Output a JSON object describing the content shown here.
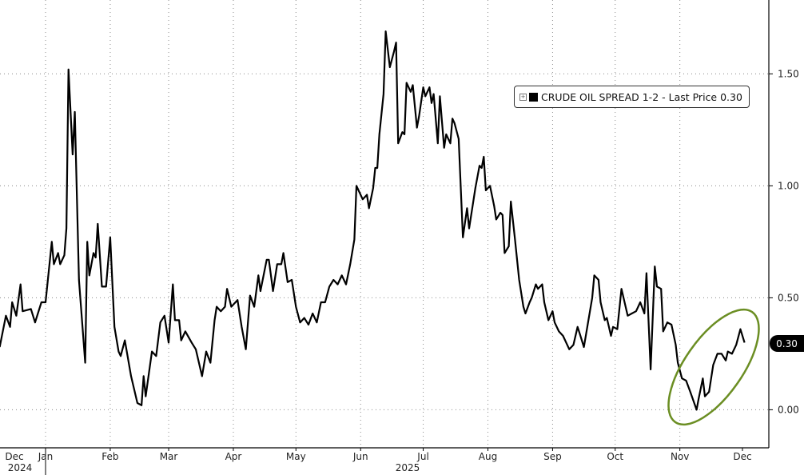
{
  "chart_data": {
    "type": "line",
    "title": "",
    "xlabel": "",
    "ylabel": "",
    "ylim": [
      -0.17,
      1.83
    ],
    "y_axis_side": "right",
    "grid": true,
    "grid_style": "dotted",
    "legend_placement": "top-right",
    "y_ticks": [
      "0.00",
      "0.50",
      "1.00",
      "1.50"
    ],
    "y_tick_values": [
      0,
      0.5,
      1.0,
      1.5
    ],
    "x_ticks": [
      {
        "label": "Dec",
        "date": "2024-12-01"
      },
      {
        "label": "Jan",
        "date": "2025-01-01"
      },
      {
        "label": "Feb",
        "date": "2025-02-01"
      },
      {
        "label": "Mar",
        "date": "2025-03-01"
      },
      {
        "label": "Apr",
        "date": "2025-04-01"
      },
      {
        "label": "May",
        "date": "2025-05-01"
      },
      {
        "label": "Jun",
        "date": "2025-06-01"
      },
      {
        "label": "Jul",
        "date": "2025-07-01"
      },
      {
        "label": "Aug",
        "date": "2025-08-01"
      },
      {
        "label": "Sep",
        "date": "2025-09-01"
      },
      {
        "label": "Oct",
        "date": "2025-10-01"
      },
      {
        "label": "Nov",
        "date": "2025-11-01"
      },
      {
        "label": "Dec",
        "date": "2025-12-01"
      }
    ],
    "year_labels": [
      {
        "label": "2024"
      },
      {
        "label": "2025"
      }
    ],
    "series": [
      {
        "name": "CRUDE OIL SPREAD 1-2 - Last Price 0.30",
        "color": "#000000",
        "points": [
          [
            "2024-12-10",
            0.28
          ],
          [
            "2024-12-13",
            0.42
          ],
          [
            "2024-12-15",
            0.37
          ],
          [
            "2024-12-16",
            0.48
          ],
          [
            "2024-12-18",
            0.42
          ],
          [
            "2024-12-20",
            0.56
          ],
          [
            "2024-12-21",
            0.44
          ],
          [
            "2024-12-25",
            0.45
          ],
          [
            "2024-12-27",
            0.39
          ],
          [
            "2024-12-30",
            0.48
          ],
          [
            "2025-01-01",
            0.48
          ],
          [
            "2025-01-04",
            0.75
          ],
          [
            "2025-01-05",
            0.65
          ],
          [
            "2025-01-07",
            0.7
          ],
          [
            "2025-01-08",
            0.65
          ],
          [
            "2025-01-10",
            0.69
          ],
          [
            "2025-01-11",
            0.81
          ],
          [
            "2025-01-12",
            1.52
          ],
          [
            "2025-01-14",
            1.14
          ],
          [
            "2025-01-15",
            1.33
          ],
          [
            "2025-01-17",
            0.58
          ],
          [
            "2025-01-20",
            0.21
          ],
          [
            "2025-01-21",
            0.75
          ],
          [
            "2025-01-22",
            0.6
          ],
          [
            "2025-01-24",
            0.7
          ],
          [
            "2025-01-25",
            0.68
          ],
          [
            "2025-01-26",
            0.83
          ],
          [
            "2025-01-28",
            0.55
          ],
          [
            "2025-01-30",
            0.55
          ],
          [
            "2025-02-01",
            0.77
          ],
          [
            "2025-02-03",
            0.37
          ],
          [
            "2025-02-05",
            0.26
          ],
          [
            "2025-02-06",
            0.24
          ],
          [
            "2025-02-08",
            0.31
          ],
          [
            "2025-02-11",
            0.15
          ],
          [
            "2025-02-14",
            0.03
          ],
          [
            "2025-02-16",
            0.02
          ],
          [
            "2025-02-17",
            0.15
          ],
          [
            "2025-02-18",
            0.06
          ],
          [
            "2025-02-21",
            0.26
          ],
          [
            "2025-02-23",
            0.24
          ],
          [
            "2025-02-25",
            0.39
          ],
          [
            "2025-02-27",
            0.42
          ],
          [
            "2025-03-01",
            0.3
          ],
          [
            "2025-03-03",
            0.56
          ],
          [
            "2025-03-04",
            0.4
          ],
          [
            "2025-03-06",
            0.4
          ],
          [
            "2025-03-07",
            0.31
          ],
          [
            "2025-03-09",
            0.35
          ],
          [
            "2025-03-12",
            0.3
          ],
          [
            "2025-03-14",
            0.27
          ],
          [
            "2025-03-17",
            0.15
          ],
          [
            "2025-03-19",
            0.26
          ],
          [
            "2025-03-21",
            0.21
          ],
          [
            "2025-03-23",
            0.4
          ],
          [
            "2025-03-24",
            0.46
          ],
          [
            "2025-03-26",
            0.44
          ],
          [
            "2025-03-28",
            0.46
          ],
          [
            "2025-03-29",
            0.54
          ],
          [
            "2025-03-31",
            0.46
          ],
          [
            "2025-04-03",
            0.49
          ],
          [
            "2025-04-05",
            0.37
          ],
          [
            "2025-04-07",
            0.27
          ],
          [
            "2025-04-09",
            0.51
          ],
          [
            "2025-04-11",
            0.46
          ],
          [
            "2025-04-13",
            0.6
          ],
          [
            "2025-04-14",
            0.53
          ],
          [
            "2025-04-17",
            0.67
          ],
          [
            "2025-04-18",
            0.67
          ],
          [
            "2025-04-20",
            0.53
          ],
          [
            "2025-04-22",
            0.65
          ],
          [
            "2025-04-24",
            0.65
          ],
          [
            "2025-04-25",
            0.7
          ],
          [
            "2025-04-27",
            0.57
          ],
          [
            "2025-04-29",
            0.58
          ],
          [
            "2025-05-01",
            0.46
          ],
          [
            "2025-05-03",
            0.39
          ],
          [
            "2025-05-05",
            0.41
          ],
          [
            "2025-05-07",
            0.38
          ],
          [
            "2025-05-09",
            0.43
          ],
          [
            "2025-05-11",
            0.39
          ],
          [
            "2025-05-13",
            0.48
          ],
          [
            "2025-05-15",
            0.48
          ],
          [
            "2025-05-17",
            0.55
          ],
          [
            "2025-05-19",
            0.58
          ],
          [
            "2025-05-21",
            0.56
          ],
          [
            "2025-05-23",
            0.6
          ],
          [
            "2025-05-25",
            0.56
          ],
          [
            "2025-05-27",
            0.65
          ],
          [
            "2025-05-29",
            0.76
          ],
          [
            "2025-05-30",
            1.0
          ],
          [
            "2025-06-02",
            0.94
          ],
          [
            "2025-06-04",
            0.96
          ],
          [
            "2025-06-05",
            0.9
          ],
          [
            "2025-06-07",
            0.99
          ],
          [
            "2025-06-08",
            1.08
          ],
          [
            "2025-06-09",
            1.08
          ],
          [
            "2025-06-10",
            1.23
          ],
          [
            "2025-06-12",
            1.41
          ],
          [
            "2025-06-13",
            1.69
          ],
          [
            "2025-06-15",
            1.53
          ],
          [
            "2025-06-17",
            1.6
          ],
          [
            "2025-06-18",
            1.64
          ],
          [
            "2025-06-19",
            1.19
          ],
          [
            "2025-06-21",
            1.24
          ],
          [
            "2025-06-22",
            1.23
          ],
          [
            "2025-06-23",
            1.46
          ],
          [
            "2025-06-25",
            1.42
          ],
          [
            "2025-06-26",
            1.45
          ],
          [
            "2025-06-28",
            1.26
          ],
          [
            "2025-06-29",
            1.31
          ],
          [
            "2025-07-01",
            1.44
          ],
          [
            "2025-07-02",
            1.4
          ],
          [
            "2025-07-04",
            1.44
          ],
          [
            "2025-07-05",
            1.37
          ],
          [
            "2025-07-06",
            1.41
          ],
          [
            "2025-07-08",
            1.19
          ],
          [
            "2025-07-09",
            1.4
          ],
          [
            "2025-07-11",
            1.17
          ],
          [
            "2025-07-12",
            1.23
          ],
          [
            "2025-07-14",
            1.19
          ],
          [
            "2025-07-15",
            1.3
          ],
          [
            "2025-07-16",
            1.28
          ],
          [
            "2025-07-18",
            1.21
          ],
          [
            "2025-07-20",
            0.77
          ],
          [
            "2025-07-22",
            0.9
          ],
          [
            "2025-07-23",
            0.81
          ],
          [
            "2025-07-26",
            0.99
          ],
          [
            "2025-07-28",
            1.09
          ],
          [
            "2025-07-29",
            1.08
          ],
          [
            "2025-07-30",
            1.13
          ],
          [
            "2025-07-31",
            0.98
          ],
          [
            "2025-08-02",
            1.0
          ],
          [
            "2025-08-04",
            0.91
          ],
          [
            "2025-08-05",
            0.85
          ],
          [
            "2025-08-07",
            0.88
          ],
          [
            "2025-08-08",
            0.87
          ],
          [
            "2025-08-09",
            0.7
          ],
          [
            "2025-08-11",
            0.73
          ],
          [
            "2025-08-12",
            0.93
          ],
          [
            "2025-08-14",
            0.76
          ],
          [
            "2025-08-16",
            0.58
          ],
          [
            "2025-08-18",
            0.46
          ],
          [
            "2025-08-19",
            0.43
          ],
          [
            "2025-08-21",
            0.48
          ],
          [
            "2025-08-22",
            0.5
          ],
          [
            "2025-08-24",
            0.56
          ],
          [
            "2025-08-25",
            0.54
          ],
          [
            "2025-08-27",
            0.56
          ],
          [
            "2025-08-28",
            0.48
          ],
          [
            "2025-08-30",
            0.4
          ],
          [
            "2025-09-01",
            0.44
          ],
          [
            "2025-09-02",
            0.39
          ],
          [
            "2025-09-04",
            0.35
          ],
          [
            "2025-09-06",
            0.33
          ],
          [
            "2025-09-08",
            0.29
          ],
          [
            "2025-09-09",
            0.27
          ],
          [
            "2025-09-11",
            0.29
          ],
          [
            "2025-09-13",
            0.37
          ],
          [
            "2025-09-14",
            0.34
          ],
          [
            "2025-09-16",
            0.28
          ],
          [
            "2025-09-18",
            0.39
          ],
          [
            "2025-09-20",
            0.5
          ],
          [
            "2025-09-21",
            0.6
          ],
          [
            "2025-09-23",
            0.58
          ],
          [
            "2025-09-24",
            0.48
          ],
          [
            "2025-09-26",
            0.4
          ],
          [
            "2025-09-27",
            0.41
          ],
          [
            "2025-09-29",
            0.33
          ],
          [
            "2025-09-30",
            0.37
          ],
          [
            "2025-10-02",
            0.36
          ],
          [
            "2025-10-04",
            0.54
          ],
          [
            "2025-10-05",
            0.5
          ],
          [
            "2025-10-07",
            0.42
          ],
          [
            "2025-10-09",
            0.43
          ],
          [
            "2025-10-11",
            0.44
          ],
          [
            "2025-10-13",
            0.48
          ],
          [
            "2025-10-15",
            0.43
          ],
          [
            "2025-10-16",
            0.61
          ],
          [
            "2025-10-18",
            0.18
          ],
          [
            "2025-10-20",
            0.64
          ],
          [
            "2025-10-21",
            0.55
          ],
          [
            "2025-10-23",
            0.54
          ],
          [
            "2025-10-24",
            0.35
          ],
          [
            "2025-10-26",
            0.39
          ],
          [
            "2025-10-28",
            0.38
          ],
          [
            "2025-10-30",
            0.29
          ],
          [
            "2025-10-31",
            0.21
          ],
          [
            "2025-11-02",
            0.14
          ],
          [
            "2025-11-04",
            0.13
          ],
          [
            "2025-11-06",
            0.08
          ],
          [
            "2025-11-09",
            0.0
          ],
          [
            "2025-11-10",
            0.05
          ],
          [
            "2025-11-12",
            0.14
          ],
          [
            "2025-11-13",
            0.06
          ],
          [
            "2025-11-15",
            0.08
          ],
          [
            "2025-11-17",
            0.2
          ],
          [
            "2025-11-19",
            0.25
          ],
          [
            "2025-11-21",
            0.25
          ],
          [
            "2025-11-23",
            0.22
          ],
          [
            "2025-11-24",
            0.26
          ],
          [
            "2025-11-26",
            0.25
          ],
          [
            "2025-11-28",
            0.29
          ],
          [
            "2025-11-30",
            0.36
          ],
          [
            "2025-12-02",
            0.3
          ]
        ]
      }
    ],
    "annotations": [
      {
        "type": "ellipse",
        "color": "#6b8e23",
        "around": "November 2025 rebound"
      }
    ]
  },
  "legend": {
    "label": "CRUDE OIL SPREAD 1-2 - Last Price 0.30",
    "expand_icon": "plus-box-icon"
  },
  "last_price_badge": {
    "value": "0.30"
  }
}
